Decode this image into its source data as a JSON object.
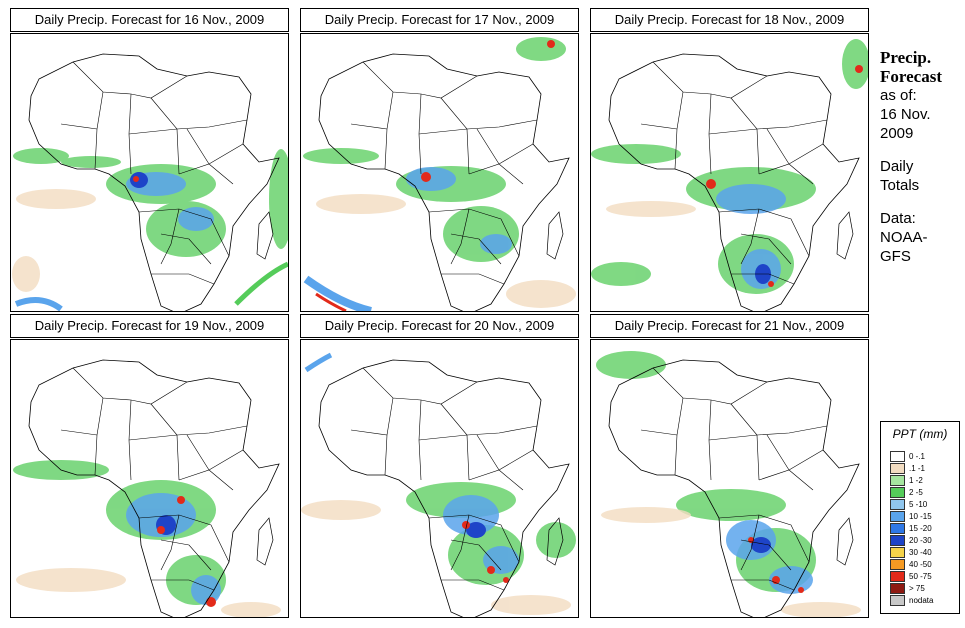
{
  "panels": [
    {
      "title": "Daily Precip. Forecast for  16 Nov., 2009"
    },
    {
      "title": "Daily Precip. Forecast for  17 Nov., 2009"
    },
    {
      "title": "Daily Precip. Forecast for  18 Nov., 2009"
    },
    {
      "title": "Daily Precip. Forecast for  19 Nov., 2009"
    },
    {
      "title": "Daily Precip. Forecast for  20 Nov., 2009"
    },
    {
      "title": "Daily Precip. Forecast for  21 Nov., 2009"
    }
  ],
  "side": {
    "title1": "Precip.",
    "title2": "Forecast",
    "asof": "as of:",
    "date1": "16 Nov.",
    "date2": "2009",
    "daily": "Daily",
    "totals": "Totals",
    "data_label": "Data:",
    "source1": "NOAA-",
    "source2": "GFS"
  },
  "legend": {
    "title": "PPT (mm)",
    "items": [
      {
        "label": "0 -.1",
        "color": "#ffffff"
      },
      {
        "label": ".1 -1",
        "color": "#f2dcc1"
      },
      {
        "label": "1 -2",
        "color": "#a6e6a0"
      },
      {
        "label": "2 -5",
        "color": "#55cc5a"
      },
      {
        "label": "5 -10",
        "color": "#90c6ee"
      },
      {
        "label": "10 -15",
        "color": "#5aa4ec"
      },
      {
        "label": "15 -20",
        "color": "#2f78e6"
      },
      {
        "label": "20 -30",
        "color": "#1e44c8"
      },
      {
        "label": "30 -40",
        "color": "#f5d34a"
      },
      {
        "label": "40 -50",
        "color": "#f59a23"
      },
      {
        "label": "50 -75",
        "color": "#e22a1a"
      },
      {
        "label": "> 75",
        "color": "#8e1a12"
      },
      {
        "label": "nodata",
        "color": "#c8c8c8"
      }
    ]
  }
}
